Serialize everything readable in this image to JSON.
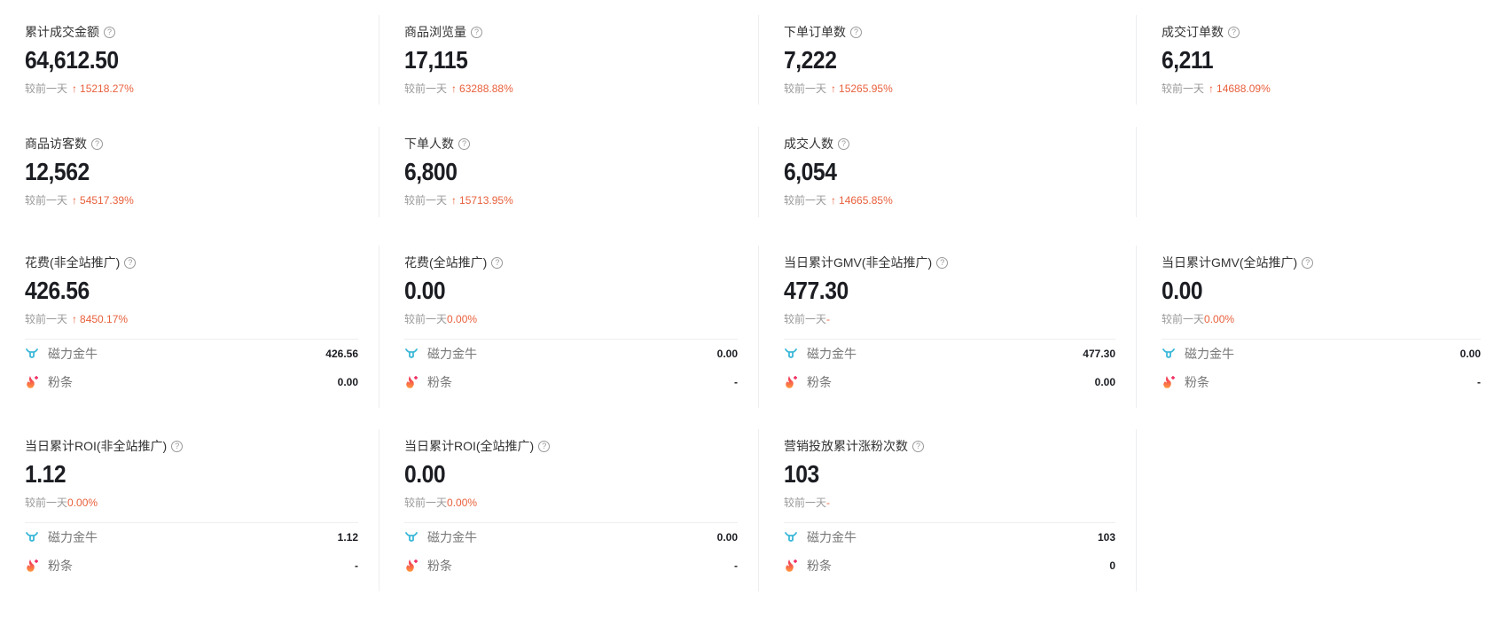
{
  "compare_label": "较前一天",
  "rows": [
    [
      {
        "label": "累计成交金额",
        "value": "64,612.50",
        "change": "15218.27%",
        "up": true
      },
      {
        "label": "商品浏览量",
        "value": "17,115",
        "change": "63288.88%",
        "up": true
      },
      {
        "label": "下单订单数",
        "value": "7,222",
        "change": "15265.95%",
        "up": true
      },
      {
        "label": "成交订单数",
        "value": "6,211",
        "change": "14688.09%",
        "up": true
      }
    ],
    [
      {
        "label": "商品访客数",
        "value": "12,562",
        "change": "54517.39%",
        "up": true
      },
      {
        "label": "下单人数",
        "value": "6,800",
        "change": "15713.95%",
        "up": true
      },
      {
        "label": "成交人数",
        "value": "6,054",
        "change": "14665.85%",
        "up": true
      }
    ],
    [
      {
        "label": "花费(非全站推广)",
        "value": "426.56",
        "change": "8450.17%",
        "up": true,
        "sub": [
          "426.56",
          "0.00"
        ]
      },
      {
        "label": "花费(全站推广)",
        "value": "0.00",
        "change": "0.00%",
        "up": false,
        "sub": [
          "0.00",
          "-"
        ]
      },
      {
        "label": "当日累计GMV(非全站推广)",
        "value": "477.30",
        "change": "-",
        "up": false,
        "sub": [
          "477.30",
          "0.00"
        ]
      },
      {
        "label": "当日累计GMV(全站推广)",
        "value": "0.00",
        "change": "0.00%",
        "up": false,
        "sub": [
          "0.00",
          "-"
        ]
      }
    ],
    [
      {
        "label": "当日累计ROI(非全站推广)",
        "value": "1.12",
        "change": "0.00%",
        "up": false,
        "sub": [
          "1.12",
          "-"
        ]
      },
      {
        "label": "当日累计ROI(全站推广)",
        "value": "0.00",
        "change": "0.00%",
        "up": false,
        "sub": [
          "0.00",
          "-"
        ]
      },
      {
        "label": "营销投放累计涨粉次数",
        "value": "103",
        "change": "-",
        "up": false,
        "sub": [
          "103",
          "0"
        ]
      }
    ]
  ],
  "sub_channels": [
    {
      "name": "磁力金牛",
      "icon": "qianchuan-bull-icon",
      "color": "#3bb8d8"
    },
    {
      "name": "粉条",
      "icon": "fentiao-flame-icon",
      "color": "#f0436c"
    }
  ],
  "colors": {
    "up": "#e8603c",
    "text": "#1b1d22",
    "muted": "#999999"
  }
}
